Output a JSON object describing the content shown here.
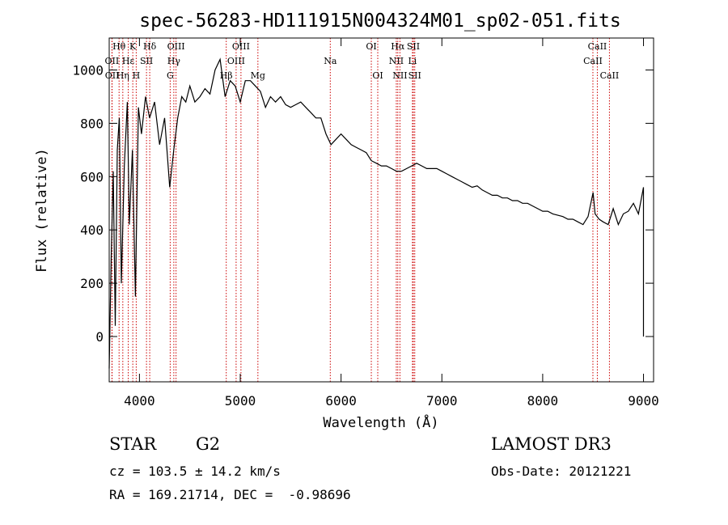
{
  "chart_data": {
    "type": "line",
    "title": "spec-56283-HD111915N004324M01_sp02-051.fits",
    "xlabel": "Wavelength (Å)",
    "ylabel": "Flux (relative)",
    "xlim": [
      3700,
      9100
    ],
    "ylim": [
      -170,
      1120
    ],
    "xticks": [
      4000,
      5000,
      6000,
      7000,
      8000,
      9000
    ],
    "yticks": [
      0,
      200,
      400,
      600,
      800,
      1000
    ],
    "grid": false,
    "colors": {
      "spectrum": "#000000",
      "line_markers": "#cc0000",
      "axes": "#000000"
    },
    "spectral_lines": [
      {
        "label": "Hθ",
        "wavelength": 3798,
        "row": 0
      },
      {
        "label": "OII",
        "wavelength": 3727,
        "row": 1
      },
      {
        "label": "OII",
        "wavelength": 3729,
        "row": 2
      },
      {
        "label": "K",
        "wavelength": 3934,
        "row": 0
      },
      {
        "label": "Hε",
        "wavelength": 3889,
        "row": 1
      },
      {
        "label": "Hη",
        "wavelength": 3835,
        "row": 2
      },
      {
        "label": "H",
        "wavelength": 3968,
        "row": 2
      },
      {
        "label": "SII",
        "wavelength": 4070,
        "row": 1
      },
      {
        "label": "Hδ",
        "wavelength": 4102,
        "row": 0
      },
      {
        "label": "OIII",
        "wavelength": 4363,
        "row": 0
      },
      {
        "label": "Hγ",
        "wavelength": 4341,
        "row": 1
      },
      {
        "label": "G",
        "wavelength": 4305,
        "row": 2
      },
      {
        "label": "Hβ",
        "wavelength": 4861,
        "row": 2
      },
      {
        "label": "OIII",
        "wavelength": 5007,
        "row": 0
      },
      {
        "label": "OIII",
        "wavelength": 4959,
        "row": 1
      },
      {
        "label": "Mg",
        "wavelength": 5175,
        "row": 2
      },
      {
        "label": "Na",
        "wavelength": 5893,
        "row": 1
      },
      {
        "label": "OI",
        "wavelength": 6300,
        "row": 0
      },
      {
        "label": "OI",
        "wavelength": 6364,
        "row": 2
      },
      {
        "label": "Hα",
        "wavelength": 6563,
        "row": 0
      },
      {
        "label": "NII",
        "wavelength": 6548,
        "row": 1
      },
      {
        "label": "NII",
        "wavelength": 6584,
        "row": 2
      },
      {
        "label": "SII",
        "wavelength": 6717,
        "row": 0
      },
      {
        "label": "Li",
        "wavelength": 6708,
        "row": 1
      },
      {
        "label": "SII",
        "wavelength": 6731,
        "row": 2
      },
      {
        "label": "CaII",
        "wavelength": 8542,
        "row": 0
      },
      {
        "label": "CaII",
        "wavelength": 8498,
        "row": 1
      },
      {
        "label": "CaII",
        "wavelength": 8662,
        "row": 2
      }
    ],
    "series": [
      {
        "x": [
          3700,
          3720,
          3740,
          3760,
          3780,
          3800,
          3820,
          3850,
          3880,
          3900,
          3930,
          3960,
          3990,
          4020,
          4060,
          4100,
          4150,
          4200,
          4250,
          4300,
          4340,
          4380,
          4420,
          4460,
          4500,
          4550,
          4600,
          4650,
          4700,
          4750,
          4800,
          4850,
          4900,
          4950,
          5000,
          5050,
          5100,
          5150,
          5200,
          5250,
          5300,
          5350,
          5400,
          5450,
          5500,
          5550,
          5600,
          5650,
          5700,
          5750,
          5800,
          5850,
          5900,
          5950,
          6000,
          6050,
          6100,
          6150,
          6200,
          6250,
          6300,
          6350,
          6400,
          6450,
          6500,
          6550,
          6600,
          6650,
          6700,
          6750,
          6800,
          6850,
          6900,
          6950,
          7000,
          7050,
          7100,
          7150,
          7200,
          7250,
          7300,
          7350,
          7400,
          7450,
          7500,
          7550,
          7600,
          7650,
          7700,
          7750,
          7800,
          7850,
          7900,
          7950,
          8000,
          8050,
          8100,
          8150,
          8200,
          8250,
          8300,
          8350,
          8400,
          8450,
          8500,
          8520,
          8540,
          8560,
          8600,
          8650,
          8700,
          8750,
          8800,
          8850,
          8900,
          8950,
          9000,
          9000
        ],
        "y": [
          -120,
          300,
          620,
          40,
          700,
          820,
          200,
          640,
          880,
          420,
          700,
          150,
          860,
          760,
          900,
          820,
          880,
          720,
          820,
          560,
          700,
          820,
          900,
          880,
          940,
          880,
          900,
          930,
          910,
          1000,
          1040,
          900,
          960,
          940,
          880,
          960,
          960,
          940,
          920,
          860,
          900,
          880,
          900,
          870,
          860,
          870,
          880,
          860,
          840,
          820,
          820,
          760,
          720,
          740,
          760,
          740,
          720,
          710,
          700,
          690,
          660,
          650,
          640,
          640,
          630,
          620,
          620,
          630,
          640,
          650,
          640,
          630,
          630,
          630,
          620,
          610,
          600,
          590,
          580,
          570,
          560,
          565,
          550,
          540,
          530,
          530,
          520,
          520,
          510,
          510,
          500,
          500,
          490,
          480,
          470,
          470,
          460,
          455,
          450,
          440,
          440,
          430,
          420,
          450,
          540,
          460,
          450,
          440,
          430,
          420,
          480,
          420,
          460,
          470,
          500,
          460,
          560,
          0
        ]
      }
    ]
  },
  "footer": {
    "class_label": "STAR",
    "subclass": "G2",
    "survey": "LAMOST DR3",
    "cz": "cz = 103.5 ± 14.2 km/s",
    "obs_date": "Obs-Date: 20121221",
    "coords": "RA = 169.21714, DEC =  -0.98696"
  }
}
